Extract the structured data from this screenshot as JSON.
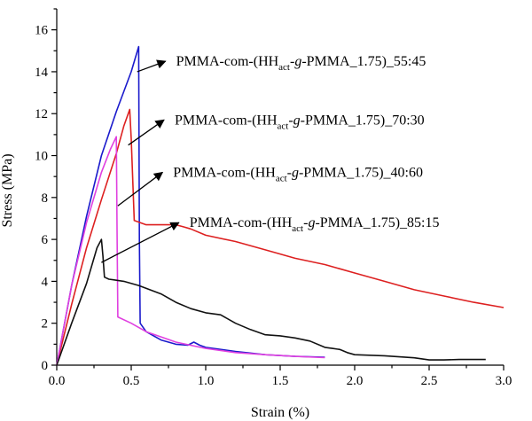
{
  "chart_data": {
    "type": "line",
    "xlabel": "Strain (%)",
    "ylabel": "Stress (MPa)",
    "xlim": [
      0,
      3.0
    ],
    "ylim": [
      0,
      17
    ],
    "x_ticks": [
      0.0,
      0.5,
      1.0,
      1.5,
      2.0,
      2.5,
      3.0
    ],
    "x_tick_labels": [
      "0.0",
      "0.5",
      "1.0",
      "1.5",
      "2.0",
      "2.5",
      "3.0"
    ],
    "y_ticks": [
      0,
      2,
      4,
      6,
      8,
      10,
      12,
      14,
      16
    ],
    "y_tick_labels": [
      "0",
      "2",
      "4",
      "6",
      "8",
      "10",
      "12",
      "14",
      "16"
    ],
    "grid": false,
    "legend": "none",
    "series": [
      {
        "color": "#1a1acc",
        "x": [
          0,
          0.1,
          0.2,
          0.3,
          0.4,
          0.5,
          0.55,
          0.555,
          0.56,
          0.6,
          0.7,
          0.8,
          0.88,
          0.92,
          0.96,
          1.0,
          1.2,
          1.4,
          1.6,
          1.8
        ],
        "y": [
          0,
          3.8,
          7.1,
          10.0,
          12.1,
          14.0,
          15.2,
          6.0,
          2.0,
          1.6,
          1.2,
          1.0,
          0.95,
          1.1,
          0.95,
          0.85,
          0.65,
          0.5,
          0.42,
          0.38
        ]
      },
      {
        "color": "#dd2020",
        "x": [
          0,
          0.1,
          0.2,
          0.3,
          0.4,
          0.45,
          0.49,
          0.5,
          0.52,
          0.6,
          0.8,
          0.85,
          0.9,
          1.0,
          1.2,
          1.4,
          1.6,
          1.8,
          2.0,
          2.2,
          2.4,
          2.6,
          2.8,
          3.0
        ],
        "y": [
          0,
          2.9,
          5.6,
          7.9,
          10.1,
          11.4,
          12.2,
          10.8,
          6.9,
          6.7,
          6.7,
          6.6,
          6.5,
          6.2,
          5.9,
          5.5,
          5.1,
          4.8,
          4.4,
          4.0,
          3.6,
          3.3,
          3.0,
          2.75
        ]
      },
      {
        "color": "#e040e0",
        "x": [
          0,
          0.1,
          0.2,
          0.3,
          0.36,
          0.4,
          0.405,
          0.41,
          0.5,
          0.6,
          0.8,
          1.0,
          1.2,
          1.4,
          1.6,
          1.8
        ],
        "y": [
          0,
          3.8,
          6.8,
          9.2,
          10.3,
          10.9,
          6.5,
          2.3,
          2.0,
          1.6,
          1.1,
          0.8,
          0.6,
          0.5,
          0.42,
          0.36
        ]
      },
      {
        "color": "#111111",
        "x": [
          0,
          0.1,
          0.2,
          0.27,
          0.3,
          0.31,
          0.32,
          0.35,
          0.45,
          0.55,
          0.7,
          0.8,
          0.9,
          1.0,
          1.1,
          1.2,
          1.3,
          1.4,
          1.5,
          1.6,
          1.7,
          1.8,
          1.85,
          1.9,
          1.95,
          2.0,
          2.2,
          2.4,
          2.5,
          2.6,
          2.7,
          2.88
        ],
        "y": [
          0,
          2.0,
          3.9,
          5.6,
          6.0,
          5.2,
          4.2,
          4.1,
          4.0,
          3.8,
          3.4,
          3.0,
          2.7,
          2.5,
          2.4,
          2.0,
          1.7,
          1.45,
          1.4,
          1.3,
          1.15,
          0.85,
          0.8,
          0.75,
          0.6,
          0.5,
          0.45,
          0.35,
          0.25,
          0.25,
          0.27,
          0.27
        ]
      }
    ],
    "annotations": [
      {
        "base": "PMMA-com-(HH",
        "sub": "act",
        "mid": "-",
        "ital": "g",
        "rest": "-PMMA_1.75)_55:45",
        "from": [
          0.54,
          14.0
        ],
        "to": [
          0.73,
          14.5
        ]
      },
      {
        "base": "PMMA-com-(HH",
        "sub": "act",
        "mid": "-",
        "ital": "g",
        "rest": "-PMMA_1.75)_70:30",
        "from": [
          0.48,
          10.5
        ],
        "to": [
          0.72,
          11.7
        ]
      },
      {
        "base": "PMMA-com-(HH",
        "sub": "act",
        "mid": "-",
        "ital": "g",
        "rest": "-PMMA_1.75)_40:60",
        "from": [
          0.41,
          7.6
        ],
        "to": [
          0.71,
          9.2
        ]
      },
      {
        "base": "PMMA-com-(HH",
        "sub": "act",
        "mid": "-",
        "ital": "g",
        "rest": "-PMMA_1.75)_85:15",
        "from": [
          0.3,
          4.9
        ],
        "to": [
          0.82,
          6.8
        ]
      }
    ]
  }
}
